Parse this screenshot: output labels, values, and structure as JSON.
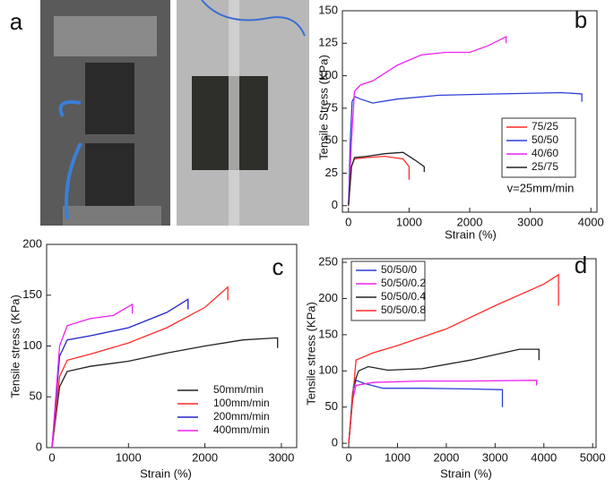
{
  "chart_data": [
    {
      "type": "photo",
      "label": "a"
    },
    {
      "type": "line",
      "label": "b",
      "xlabel": "Strain (%)",
      "ylabel": "Tensile Stress (KPa)",
      "xlim": [
        -100,
        4100
      ],
      "ylim": [
        -5,
        150
      ],
      "xticks": [
        0,
        1000,
        2000,
        3000,
        4000
      ],
      "yticks": [
        0,
        25,
        50,
        75,
        100,
        125,
        150
      ],
      "legend": "right",
      "annotation": "v=25mm/min",
      "series": [
        {
          "name": "75/25",
          "color": "#ff2a2a",
          "x": [
            0,
            50,
            100,
            300,
            600,
            900,
            1000,
            1000
          ],
          "values": [
            0,
            30,
            36,
            37,
            38,
            36,
            30,
            20
          ]
        },
        {
          "name": "50/50",
          "color": "#2a3fd8",
          "x": [
            0,
            30,
            60,
            100,
            200,
            400,
            800,
            1500,
            2500,
            3500,
            3850,
            3850
          ],
          "values": [
            0,
            50,
            80,
            84,
            82,
            79,
            82,
            85,
            86,
            87,
            86,
            80
          ]
        },
        {
          "name": "40/60",
          "color": "#ee22ee",
          "x": [
            0,
            50,
            100,
            200,
            400,
            800,
            1200,
            1600,
            2000,
            2300,
            2600,
            2600
          ],
          "values": [
            0,
            50,
            88,
            93,
            96,
            108,
            116,
            118,
            118,
            123,
            130,
            125
          ]
        },
        {
          "name": "25/75",
          "color": "#222222",
          "x": [
            0,
            50,
            100,
            300,
            600,
            900,
            1100,
            1250,
            1250
          ],
          "values": [
            0,
            30,
            37,
            38,
            40,
            41,
            35,
            30,
            26
          ]
        }
      ]
    },
    {
      "type": "line",
      "label": "c",
      "xlabel": "Strain (%)",
      "ylabel": "Tensile stress (KPa)",
      "xlim": [
        -70,
        3200
      ],
      "ylim": [
        0,
        200
      ],
      "xticks": [
        0,
        1000,
        2000,
        3000
      ],
      "yticks": [
        0,
        50,
        100,
        150,
        200
      ],
      "legend": "lower-right",
      "series": [
        {
          "name": "50mm/min",
          "color": "#222222",
          "x": [
            0,
            100,
            200,
            500,
            1000,
            1500,
            2000,
            2500,
            2950,
            2950
          ],
          "values": [
            0,
            60,
            75,
            80,
            85,
            93,
            100,
            106,
            108,
            98
          ]
        },
        {
          "name": "100mm/min",
          "color": "#ff2a2a",
          "x": [
            0,
            100,
            200,
            500,
            1000,
            1500,
            2000,
            2300,
            2300
          ],
          "values": [
            0,
            70,
            86,
            92,
            103,
            118,
            138,
            158,
            145
          ]
        },
        {
          "name": "200mm/min",
          "color": "#2222cc",
          "x": [
            0,
            100,
            200,
            500,
            1000,
            1500,
            1780,
            1780
          ],
          "values": [
            0,
            90,
            106,
            110,
            118,
            133,
            146,
            136
          ]
        },
        {
          "name": "400mm/min",
          "color": "#ee22ee",
          "x": [
            0,
            100,
            200,
            500,
            800,
            1050,
            1050
          ],
          "values": [
            0,
            100,
            120,
            127,
            130,
            141,
            132
          ]
        }
      ]
    },
    {
      "type": "line",
      "label": "d",
      "xlabel": "Strain (%)",
      "ylabel": "Tensile stress (KPa)",
      "xlim": [
        -130,
        5070
      ],
      "ylim": [
        -6,
        255
      ],
      "xticks": [
        0,
        1000,
        2000,
        3000,
        4000,
        5000
      ],
      "yticks": [
        0,
        50,
        100,
        150,
        200,
        250
      ],
      "legend": "upper-left",
      "series": [
        {
          "name": "50/50/0",
          "color": "#2a3fd8",
          "x": [
            0,
            80,
            150,
            300,
            700,
            1500,
            2500,
            3150,
            3150
          ],
          "values": [
            0,
            70,
            87,
            83,
            76,
            76,
            75,
            74,
            50
          ]
        },
        {
          "name": "50/50/0.2",
          "color": "#ee22ee",
          "x": [
            0,
            80,
            150,
            500,
            1500,
            2500,
            3850,
            3850
          ],
          "values": [
            0,
            60,
            80,
            84,
            86,
            86,
            87,
            80
          ]
        },
        {
          "name": "50/50/0.4",
          "color": "#222222",
          "x": [
            0,
            100,
            200,
            400,
            800,
            1500,
            2500,
            3500,
            3900,
            3900
          ],
          "values": [
            0,
            80,
            100,
            106,
            101,
            103,
            115,
            130,
            130,
            115
          ]
        },
        {
          "name": "50/50/0.8",
          "color": "#ff2a2a",
          "x": [
            0,
            150,
            500,
            1000,
            2000,
            3000,
            4000,
            4300,
            4300
          ],
          "values": [
            0,
            115,
            125,
            135,
            158,
            190,
            220,
            233,
            190
          ]
        }
      ]
    }
  ]
}
